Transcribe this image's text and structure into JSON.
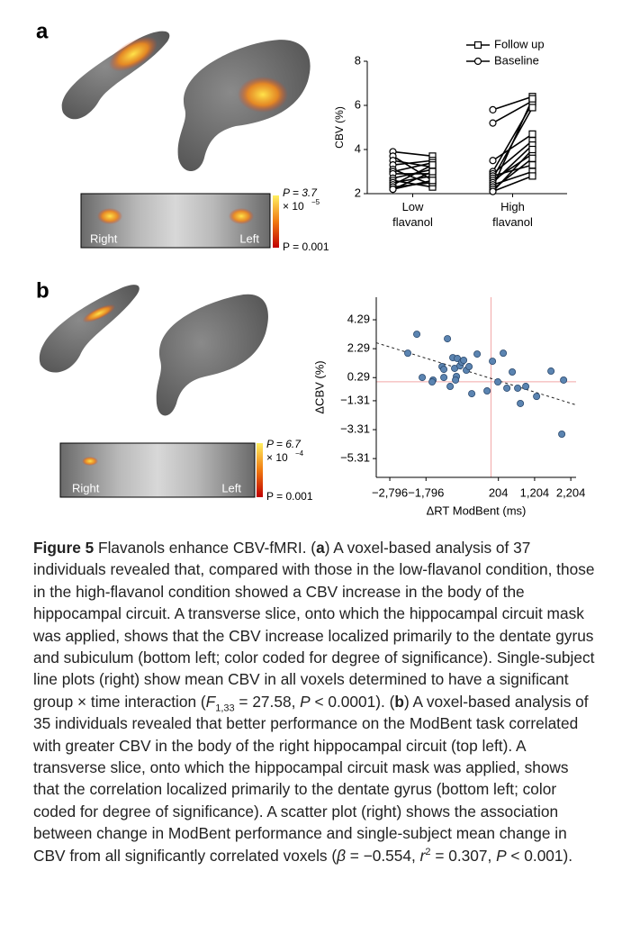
{
  "panel_labels": [
    "a",
    "b"
  ],
  "slices": [
    {
      "left_label": "Right",
      "right_label": "Left",
      "p_top": "P = 3.7",
      "p_base": "× 10",
      "p_exp": "−5",
      "p_bottom": "P = 0.001"
    },
    {
      "left_label": "Right",
      "right_label": "Left",
      "p_top": "P = 6.7",
      "p_base": "× 10",
      "p_exp": "−4",
      "p_bottom": "P = 0.001"
    }
  ],
  "chart_data": [
    {
      "type": "paired",
      "ylabel": "CBV (%)",
      "categories": [
        "Low flavanol",
        "High flavanol"
      ],
      "ylim": [
        2,
        8
      ],
      "yticks": [
        2,
        4,
        6,
        8
      ],
      "legend": "upper right",
      "color": "#000000",
      "series": [
        {
          "name": "Follow up",
          "marker": "square",
          "values": [
            [
              3.7,
              2.6,
              3.2,
              3.5,
              2.4,
              3.4,
              2.9,
              3.1,
              2.3,
              2.8,
              3.3,
              2.5,
              3.0,
              2.6
            ],
            [
              6.4,
              6.2,
              4.7,
              6.1,
              4.4,
              3.3,
              5.9,
              3.8,
              4.2,
              3.0,
              6.3,
              3.6,
              2.8,
              4.0
            ]
          ]
        },
        {
          "name": "Baseline",
          "marker": "circle",
          "values": [
            [
              3.9,
              3.7,
              3.5,
              3.3,
              3.1,
              3.0,
              2.9,
              2.7,
              2.6,
              2.5,
              2.4,
              2.3,
              2.2,
              2.2
            ],
            [
              5.8,
              5.2,
              3.5,
              3.0,
              2.9,
              2.8,
              2.7,
              2.6,
              2.5,
              2.4,
              2.3,
              2.2,
              2.1,
              2.1
            ]
          ]
        }
      ]
    },
    {
      "type": "scatter",
      "xlabel": "ΔRT ModBent (ms)",
      "ylabel": "ΔCBV (%)",
      "xlim": [
        -3170,
        2350
      ],
      "ylim": [
        -6.61,
        5.85
      ],
      "xticks": [
        {
          "value": -2796,
          "label": "−2,796"
        },
        {
          "value": -1796,
          "label": "−1,796"
        },
        {
          "value": 204,
          "label": "204"
        },
        {
          "value": 1204,
          "label": "1,204"
        },
        {
          "value": 2204,
          "label": "2,204"
        }
      ],
      "yticks": [
        {
          "value": 4.29,
          "label": "4.29"
        },
        {
          "value": 2.29,
          "label": "2.29"
        },
        {
          "value": 0.29,
          "label": "0.29"
        },
        {
          "value": -1.31,
          "label": "−1.31"
        },
        {
          "value": -3.31,
          "label": "−3.31"
        },
        {
          "value": -5.31,
          "label": "−5.31"
        }
      ],
      "color": "#5b84b1",
      "reference_color": "#f2a8a8",
      "reference_lines": {
        "x": 0,
        "y": 0
      },
      "trend": {
        "x": [
          -3170,
          2350
        ],
        "y": [
          2.7,
          -1.6
        ]
      },
      "x": [
        -2299,
        -2050,
        -1900,
        -1602,
        -1353,
        -1303,
        -1303,
        -1204,
        -1129,
        -1055,
        -1005,
        -955,
        -930,
        -856,
        -806,
        -756,
        -682,
        -607,
        -532,
        -383,
        -109,
        40,
        189,
        338,
        438,
        587,
        736,
        811,
        960,
        1259,
        1657,
        2005,
        1955,
        -1627,
        -980
      ],
      "y": [
        1.98,
        3.29,
        0.3,
        0.12,
        1.05,
        0.86,
        0.3,
        2.98,
        -0.32,
        1.67,
        0.93,
        0.37,
        1.61,
        1.11,
        1.36,
        1.49,
        0.8,
        1.05,
        -0.82,
        1.92,
        -0.63,
        1.42,
        -0.01,
        1.98,
        -0.44,
        0.68,
        -0.44,
        -1.5,
        -0.32,
        -1.01,
        0.74,
        0.12,
        -3.62,
        -0.01,
        0.12
      ]
    }
  ],
  "caption": {
    "runs": [
      "Figure 5",
      "  Flavanols enhance CBV-fMRI. (",
      "a",
      ") A voxel-based analysis of 37 individuals revealed that, compared with those in the low-flavanol condition, those in the high-flavanol condition showed a CBV increase in the body of the hippocampal circuit. A transverse slice, onto which the hippocampal circuit mask was applied, shows that the CBV increase localized primarily to the dentate gyrus and subiculum (bottom left; color coded for degree of significance). Single-subject line plots (right) show mean CBV in all voxels determined to have a significant group × time interaction (",
      "F",
      "1,33",
      " = 27.58, ",
      "P",
      " < 0.0001). (",
      "b",
      ") A voxel-based analysis of 35 individuals revealed that better performance on the ModBent task correlated with greater CBV in the body of the right hippocampal circuit (top left). A transverse slice, onto which the hippocampal circuit mask was applied, shows that the correlation localized primarily to the dentate gyrus (bottom left; color coded for degree of significance). A scatter plot (right) shows the association between change in ModBent performance and single-subject mean change in CBV from all significantly correlated voxels (",
      "β",
      " = −0.554, ",
      "r",
      "2",
      " = 0.307, ",
      "P",
      " < 0.001)."
    ]
  }
}
